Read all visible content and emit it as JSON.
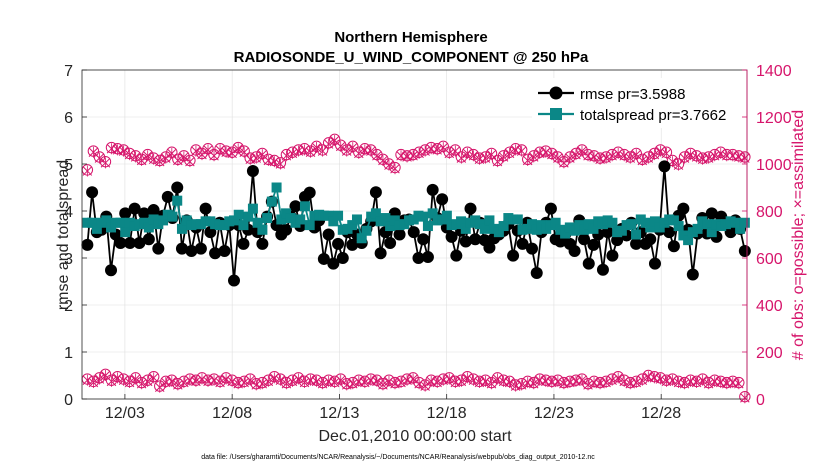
{
  "chart_data": {
    "type": "line",
    "title": "Northern Hemisphere",
    "subtitle": "RADIOSONDE_U_WIND_COMPONENT @ 250 hPa",
    "xlabel": "Dec.01,2010 00:00:00 start",
    "ylabel": "rmse and totalspread",
    "ylabel_right": "# of obs: o=possible; ×=assimilated",
    "footer": "data file: /Users/gharamti/Documents/NCAR/Reanalysis/~/Documents/NCAR/Reanalysis/webpub/obs_diag_output_2010-12.nc",
    "xlim": [
      1,
      32
    ],
    "ylim": [
      0,
      7
    ],
    "ylim_right": [
      0,
      1400
    ],
    "x_ticks": [
      3,
      8,
      13,
      18,
      23,
      28
    ],
    "x_tick_labels": [
      "12/03",
      "12/08",
      "12/13",
      "12/18",
      "12/23",
      "12/28"
    ],
    "y_ticks": [
      0,
      1,
      2,
      3,
      4,
      5,
      6,
      7
    ],
    "y_ticks_right": [
      0,
      200,
      400,
      600,
      800,
      1000,
      1200,
      1400
    ],
    "colors": {
      "rmse": "#000000",
      "spread": "#0b8787",
      "obs": "#d6156b",
      "axis": "#262626"
    },
    "legend": [
      {
        "name": "rmse pr=3.5988",
        "key": "rmse"
      },
      {
        "name": "totalspread pr=3.7662",
        "key": "spread"
      }
    ],
    "series": [
      {
        "name": "rmse",
        "values": [
          3.28,
          4.4,
          3.55,
          3.6,
          3.88,
          2.74,
          3.5,
          3.32,
          3.95,
          3.32,
          4.05,
          3.32,
          3.95,
          3.4,
          4.02,
          3.2,
          3.9,
          4.3,
          3.85,
          4.5,
          3.2,
          3.8,
          3.15,
          3.65,
          3.2,
          4.05,
          3.55,
          3.1,
          3.75,
          3.15,
          3.7,
          2.52,
          3.7,
          3.3,
          3.6,
          4.85,
          3.55,
          3.3,
          3.88,
          4.2,
          3.7,
          3.5,
          3.6,
          3.88,
          4.1,
          3.68,
          4.3,
          4.39,
          3.65,
          3.8,
          2.98,
          3.5,
          2.88,
          3.3,
          3.0,
          3.55,
          3.28,
          3.5,
          3.32,
          3.62,
          3.78,
          4.4,
          3.1,
          3.55,
          3.32,
          3.95,
          3.5,
          3.8,
          3.82,
          3.55,
          3.0,
          3.4,
          3.02,
          4.45,
          3.85,
          4.25,
          3.65,
          3.45,
          3.05,
          3.58,
          3.35,
          4.05,
          3.4,
          3.75,
          3.38,
          3.22,
          3.42,
          3.5,
          3.58,
          3.72,
          3.05,
          3.58,
          3.3,
          3.75,
          3.2,
          2.68,
          3.55,
          3.75,
          4.05,
          3.4,
          3.35,
          3.5,
          3.3,
          3.15,
          3.8,
          3.4,
          2.88,
          3.28,
          3.5,
          2.75,
          3.55,
          3.05,
          3.38,
          3.62,
          3.48,
          3.75,
          3.3,
          3.55,
          3.3,
          3.4,
          2.88,
          3.6,
          4.95,
          3.55,
          3.25,
          3.9,
          4.05,
          3.6,
          2.65,
          3.52,
          3.85,
          3.52,
          3.95,
          3.45,
          3.88,
          3.7,
          3.55,
          3.8,
          3.62,
          3.15
        ]
      },
      {
        "name": "totalspread",
        "values": [
          3.75,
          3.75,
          3.62,
          3.75,
          3.8,
          3.65,
          3.75,
          3.75,
          3.55,
          3.75,
          3.68,
          3.72,
          3.75,
          3.65,
          3.82,
          3.72,
          3.8,
          3.92,
          3.88,
          4.22,
          3.62,
          3.8,
          3.7,
          3.72,
          3.72,
          3.78,
          3.78,
          3.72,
          3.7,
          3.7,
          3.78,
          3.8,
          3.92,
          3.7,
          3.88,
          4.05,
          3.75,
          3.6,
          3.85,
          4.2,
          4.5,
          3.82,
          3.95,
          3.85,
          3.75,
          3.82,
          4.1,
          3.7,
          3.9,
          3.92,
          3.9,
          3.9,
          3.78,
          3.9,
          3.6,
          3.62,
          3.7,
          3.82,
          3.42,
          3.58,
          3.88,
          3.95,
          3.78,
          3.85,
          3.68,
          3.8,
          3.7,
          3.72,
          3.8,
          3.82,
          3.9,
          3.88,
          3.68,
          3.95,
          3.8,
          3.82,
          3.9,
          3.7,
          3.72,
          3.78,
          3.62,
          3.75,
          3.8,
          3.72,
          3.62,
          3.8,
          3.62,
          3.55,
          3.68,
          3.85,
          3.82,
          3.82,
          3.6,
          3.62,
          3.72,
          3.6,
          3.7,
          3.62,
          3.7,
          3.75,
          3.6,
          3.52,
          3.65,
          3.58,
          3.7,
          3.6,
          3.72,
          3.62,
          3.78,
          3.72,
          3.8,
          3.75,
          3.55,
          3.58,
          3.7,
          3.72,
          3.5,
          3.82,
          3.75,
          3.65,
          3.78,
          3.65,
          3.75,
          3.82,
          3.8,
          3.68,
          3.48,
          3.38,
          3.55,
          3.62,
          3.78,
          3.72,
          3.55,
          3.72,
          3.68,
          3.72,
          3.78,
          3.75,
          3.62,
          3.75
        ]
      },
      {
        "name": "possible (o)",
        "axis": "right",
        "values": [
          975,
          1055,
          1030,
          1010,
          1070,
          1065,
          1060,
          1045,
          1035,
          1020,
          1040,
          1025,
          1015,
          1030,
          1050,
          1020,
          1035,
          1015,
          1060,
          1045,
          1065,
          1040,
          1065,
          1055,
          1050,
          1070,
          1055,
          1025,
          1030,
          1045,
          1020,
          1015,
          1005,
          1040,
          1050,
          1060,
          1065,
          1055,
          1075,
          1060,
          1090,
          1105,
          1080,
          1060,
          1075,
          1050,
          1065,
          1060,
          1040,
          1020,
          1000,
          985,
          1040,
          1035,
          1040,
          1050,
          1060,
          1070,
          1065,
          1075,
          1050,
          1060,
          1030,
          1050,
          1040,
          1025,
          1030,
          1045,
          1015,
          1035,
          1050,
          1065,
          1060,
          1020,
          1035,
          1050,
          1055,
          1045,
          1030,
          1010,
          1030,
          1045,
          1060,
          1040,
          1035,
          1025,
          1030,
          1040,
          1050,
          1040,
          1030,
          1045,
          1020,
          1030,
          1045,
          1060,
          1050,
          1015,
          1000,
          1030,
          1045,
          1035,
          1025,
          1030,
          1040,
          1050,
          1040,
          1040,
          1035,
          1030
        ]
      },
      {
        "name": "assimilated (×)",
        "axis": "right",
        "values": [
          970,
          1050,
          1025,
          1005,
          1065,
          1060,
          1055,
          1040,
          1030,
          1015,
          1035,
          1020,
          1010,
          1025,
          1045,
          1015,
          1030,
          1010,
          1055,
          1040,
          1060,
          1035,
          1060,
          1050,
          1045,
          1065,
          1050,
          1020,
          1025,
          1040,
          1015,
          1010,
          1000,
          1035,
          1045,
          1055,
          1060,
          1050,
          1070,
          1055,
          1085,
          1100,
          1075,
          1055,
          1070,
          1045,
          1060,
          1055,
          1035,
          1015,
          995,
          980,
          1035,
          1030,
          1035,
          1045,
          1055,
          1065,
          1060,
          1070,
          1045,
          1055,
          1025,
          1045,
          1035,
          1020,
          1025,
          1040,
          1010,
          1030,
          1045,
          1060,
          1055,
          1015,
          1030,
          1045,
          1050,
          1040,
          1025,
          1005,
          1025,
          1040,
          1055,
          1035,
          1030,
          1020,
          1025,
          1035,
          1045,
          1035,
          1025,
          1040,
          1015,
          1025,
          1040,
          1055,
          1045,
          1010,
          995,
          1025,
          1040,
          1030,
          1020,
          1025,
          1035,
          1045,
          1035,
          1035,
          1030,
          1025
        ]
      },
      {
        "name": "possible (o) low",
        "axis": "right",
        "values": [
          85,
          75,
          90,
          105,
          80,
          95,
          85,
          75,
          90,
          70,
          80,
          95,
          55,
          75,
          80,
          65,
          75,
          85,
          80,
          90,
          80,
          85,
          75,
          90,
          80,
          70,
          75,
          85,
          65,
          70,
          80,
          95,
          85,
          70,
          80,
          90,
          75,
          85,
          80,
          70,
          80,
          75,
          85,
          65,
          70,
          80,
          75,
          85,
          80,
          65,
          80,
          70,
          75,
          85,
          90,
          70,
          60,
          80,
          75,
          85,
          90,
          75,
          80,
          95,
          85,
          75,
          80,
          70,
          90,
          80,
          75,
          60,
          65,
          75,
          70,
          85,
          80,
          75,
          80,
          70,
          75,
          80,
          85,
          65,
          75,
          70,
          75,
          85,
          95,
          80,
          70,
          75,
          85,
          100,
          95,
          90,
          80,
          85,
          75,
          70,
          80,
          75,
          85,
          70,
          80,
          75,
          70,
          75,
          70,
          10
        ]
      },
      {
        "name": "assimilated (×) low",
        "axis": "right",
        "values": [
          80,
          70,
          85,
          100,
          75,
          90,
          80,
          70,
          85,
          65,
          75,
          90,
          50,
          70,
          75,
          60,
          70,
          80,
          75,
          85,
          75,
          80,
          70,
          85,
          75,
          65,
          70,
          80,
          60,
          65,
          75,
          90,
          80,
          65,
          75,
          85,
          70,
          80,
          75,
          65,
          75,
          70,
          80,
          60,
          65,
          75,
          70,
          80,
          75,
          60,
          75,
          65,
          70,
          80,
          85,
          65,
          55,
          75,
          70,
          80,
          85,
          70,
          75,
          90,
          80,
          70,
          75,
          65,
          85,
          75,
          70,
          55,
          60,
          70,
          65,
          80,
          75,
          70,
          75,
          65,
          70,
          75,
          80,
          60,
          70,
          65,
          70,
          80,
          90,
          75,
          65,
          70,
          80,
          95,
          90,
          85,
          75,
          80,
          70,
          65,
          75,
          70,
          80,
          65,
          75,
          70,
          65,
          70,
          65,
          5
        ]
      }
    ]
  }
}
